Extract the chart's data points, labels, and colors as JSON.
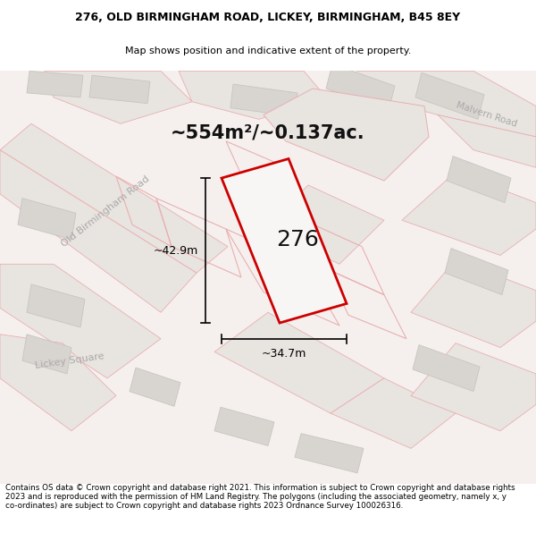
{
  "title_line1": "276, OLD BIRMINGHAM ROAD, LICKEY, BIRMINGHAM, B45 8EY",
  "title_line2": "Map shows position and indicative extent of the property.",
  "footer": "Contains OS data © Crown copyright and database right 2021. This information is subject to Crown copyright and database rights 2023 and is reproduced with the permission of HM Land Registry. The polygons (including the associated geometry, namely x, y co-ordinates) are subject to Crown copyright and database rights 2023 Ordnance Survey 100026316.",
  "area_label": "~554m²/~0.137ac.",
  "number_label": "276",
  "dim_height": "~42.9m",
  "dim_width": "~34.7m",
  "road_label1": "Old Birmingham Road",
  "road_label2": "Malvern Road",
  "road_label3": "Lickey Square",
  "map_bg": "#f5f0ee",
  "road_fill": "#e8e4e0",
  "building_fill": "#d8d4d0",
  "building_edge": "#c8c4c0",
  "parcel_edge_red": "#cc0000",
  "parcel_fill": "#f0eeec",
  "pink_edge": "#e8b0b0",
  "road_label_color": "#aaaaaa",
  "dim_color": "#000000",
  "title_fontsize": 9,
  "subtitle_fontsize": 8,
  "footer_fontsize": 6.3,
  "area_fontsize": 15,
  "number_fontsize": 18,
  "road_fontsize": 8
}
